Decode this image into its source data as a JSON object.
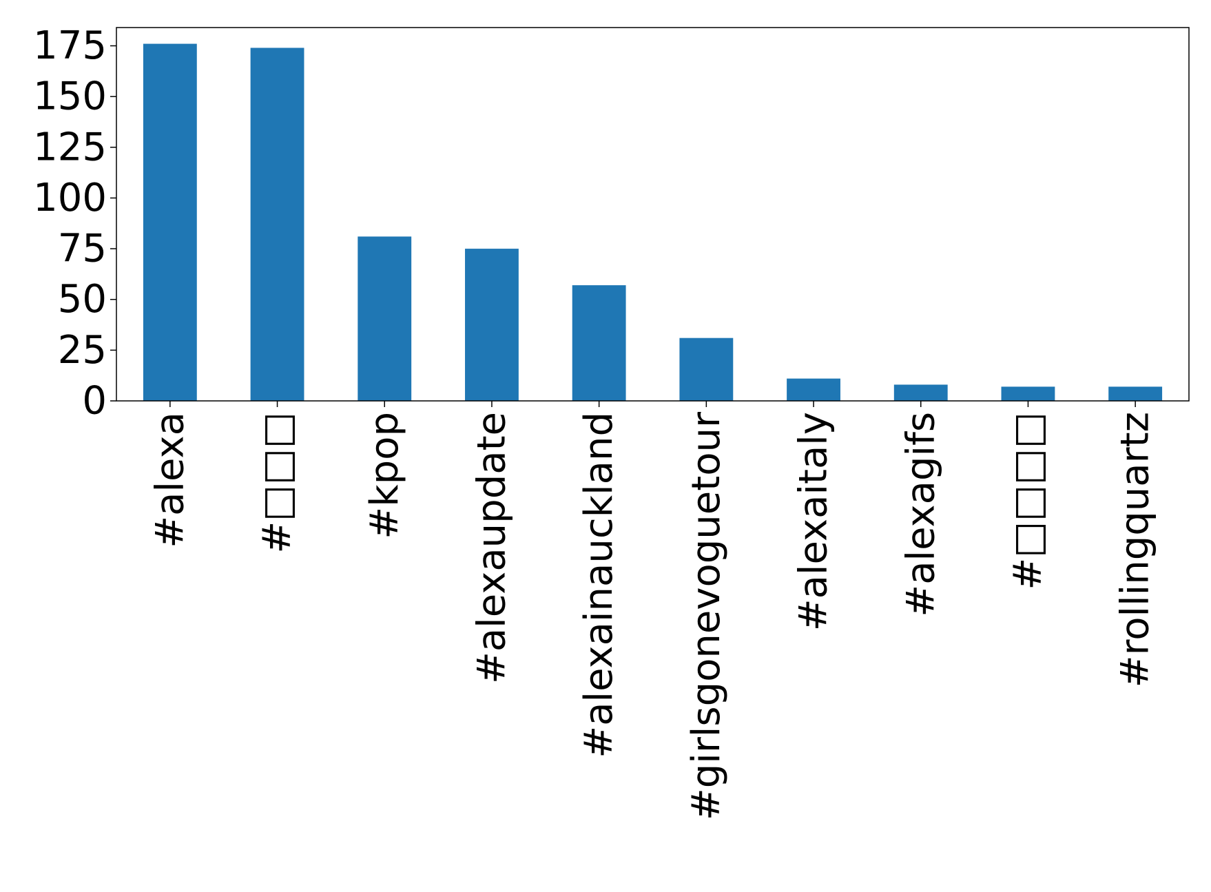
{
  "chart_data": {
    "type": "bar",
    "title": "",
    "xlabel": "",
    "ylabel": "",
    "categories": [
      "#alexa",
      "#□□□",
      "#kpop",
      "#alexaupdate",
      "#alexainauckland",
      "#girlsgonevoguetour",
      "#alexaitaly",
      "#alexagifs",
      "#□□□□",
      "#rollingquartz"
    ],
    "values": [
      176,
      174,
      81,
      75,
      57,
      31,
      11,
      8,
      7,
      7
    ],
    "ylim": [
      0,
      184
    ],
    "yticks": [
      "0",
      "25",
      "50",
      "75",
      "100",
      "125",
      "150",
      "175"
    ],
    "bar_color": "#1f77b4",
    "grid": false,
    "legend": "none"
  }
}
